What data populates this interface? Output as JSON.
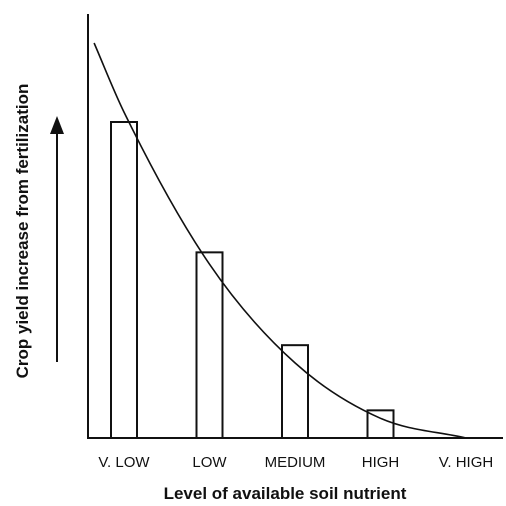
{
  "chart_data": {
    "type": "bar",
    "categories": [
      "V. LOW",
      "LOW",
      "MEDIUM",
      "HIGH",
      "V. HIGH"
    ],
    "values": [
      80,
      47,
      23.5,
      7,
      0
    ],
    "trend_curve": {
      "x": [
        -0.35,
        0,
        1,
        2,
        3,
        4
      ],
      "y": [
        100,
        82.5,
        44,
        19,
        5,
        0
      ]
    },
    "title": "",
    "xlabel": "Level of available soil nutrient",
    "ylabel": "Crop yield increase from fertilization",
    "y_axis_arrow": "up",
    "ylim": [
      0,
      100
    ],
    "grid": false,
    "legend": "none",
    "colors": {
      "line": "#111111",
      "bar_fill": "#ffffff",
      "background": "#ffffff"
    }
  }
}
